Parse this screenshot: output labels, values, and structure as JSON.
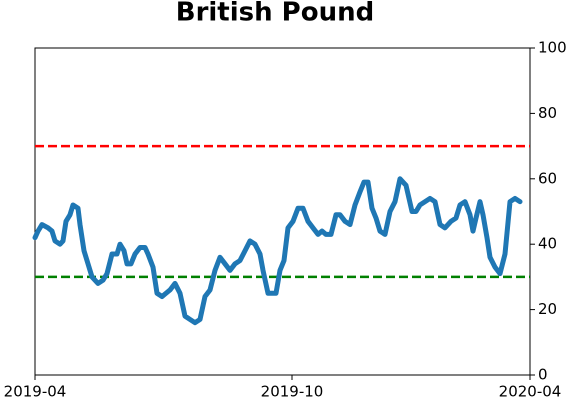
{
  "chart_data": {
    "type": "line",
    "title": "British Pound",
    "x": [
      0,
      0.6,
      1.4,
      2.6,
      3.4,
      4,
      5,
      5.6,
      6.2,
      7,
      7.6,
      8.6,
      9,
      9.8,
      10.6,
      11.4,
      12.6,
      13.6,
      14.4,
      15.4,
      16.4,
      17,
      17.8,
      18.4,
      19.2,
      20,
      21,
      22,
      22.6,
      23.6,
      24.4,
      25.4,
      26.2,
      27,
      28,
      29,
      30,
      31,
      32,
      33,
      34,
      35,
      36,
      37,
      38,
      39,
      40,
      41,
      42,
      43,
      44,
      45,
      45.6,
      46.6,
      47.4,
      48.2,
      49,
      49.8,
      50.6,
      51.6,
      52.6,
      53.6,
      54.6,
      55.6,
      56.6,
      57.4,
      58.2,
      59.2,
      60.2,
      61,
      62,
      63,
      64,
      65,
      65.8,
      66.6,
      67.4,
      68.2,
      69,
      70,
      71,
      72,
      73,
      74.2,
      75.4,
      76.2,
      77,
      78,
      79,
      80,
      81,
      82,
      83.2,
      84.2,
      85,
      86,
      87,
      87.6,
      88.2,
      89,
      89.6,
      90.4,
      91,
      92,
      93,
      94,
      95,
      96,
      97
    ],
    "series": [
      {
        "color": "#1f77b4",
        "values": [
          42,
          44,
          46,
          45,
          44,
          41,
          40,
          41,
          47,
          49,
          52,
          51,
          46,
          38,
          34,
          30,
          28,
          29,
          31,
          37,
          37,
          40,
          38,
          34,
          34,
          37,
          39,
          39,
          37,
          33,
          25,
          24,
          25,
          26,
          28,
          25,
          18,
          17,
          16,
          17,
          24,
          26,
          32,
          36,
          34,
          32,
          34,
          35,
          38,
          41,
          40,
          37,
          32,
          25,
          25,
          25,
          32,
          35,
          45,
          47,
          51,
          51,
          47,
          45,
          43,
          44,
          43,
          43,
          49,
          49,
          47,
          46,
          52,
          56,
          59,
          59,
          51,
          48,
          44,
          43,
          50,
          53,
          60,
          58,
          50,
          50,
          52,
          53,
          54,
          53,
          46,
          45,
          47,
          48,
          52,
          53,
          49,
          44,
          48,
          53,
          49,
          42,
          36,
          33,
          31,
          37,
          53,
          54,
          53
        ]
      }
    ],
    "hlines": [
      {
        "value": 70,
        "color": "#ff0000"
      },
      {
        "value": 30,
        "color": "#008000"
      }
    ],
    "xlim": [
      0,
      99
    ],
    "xticks": [
      {
        "value": 0,
        "label": "2019-04"
      },
      {
        "value": 51.4,
        "label": "2019-10"
      },
      {
        "value": 99,
        "label": "2020-04"
      }
    ],
    "ylim": [
      0,
      100
    ],
    "yticks": [
      0,
      20,
      40,
      60,
      80,
      100
    ],
    "y_axis_side": "right"
  }
}
